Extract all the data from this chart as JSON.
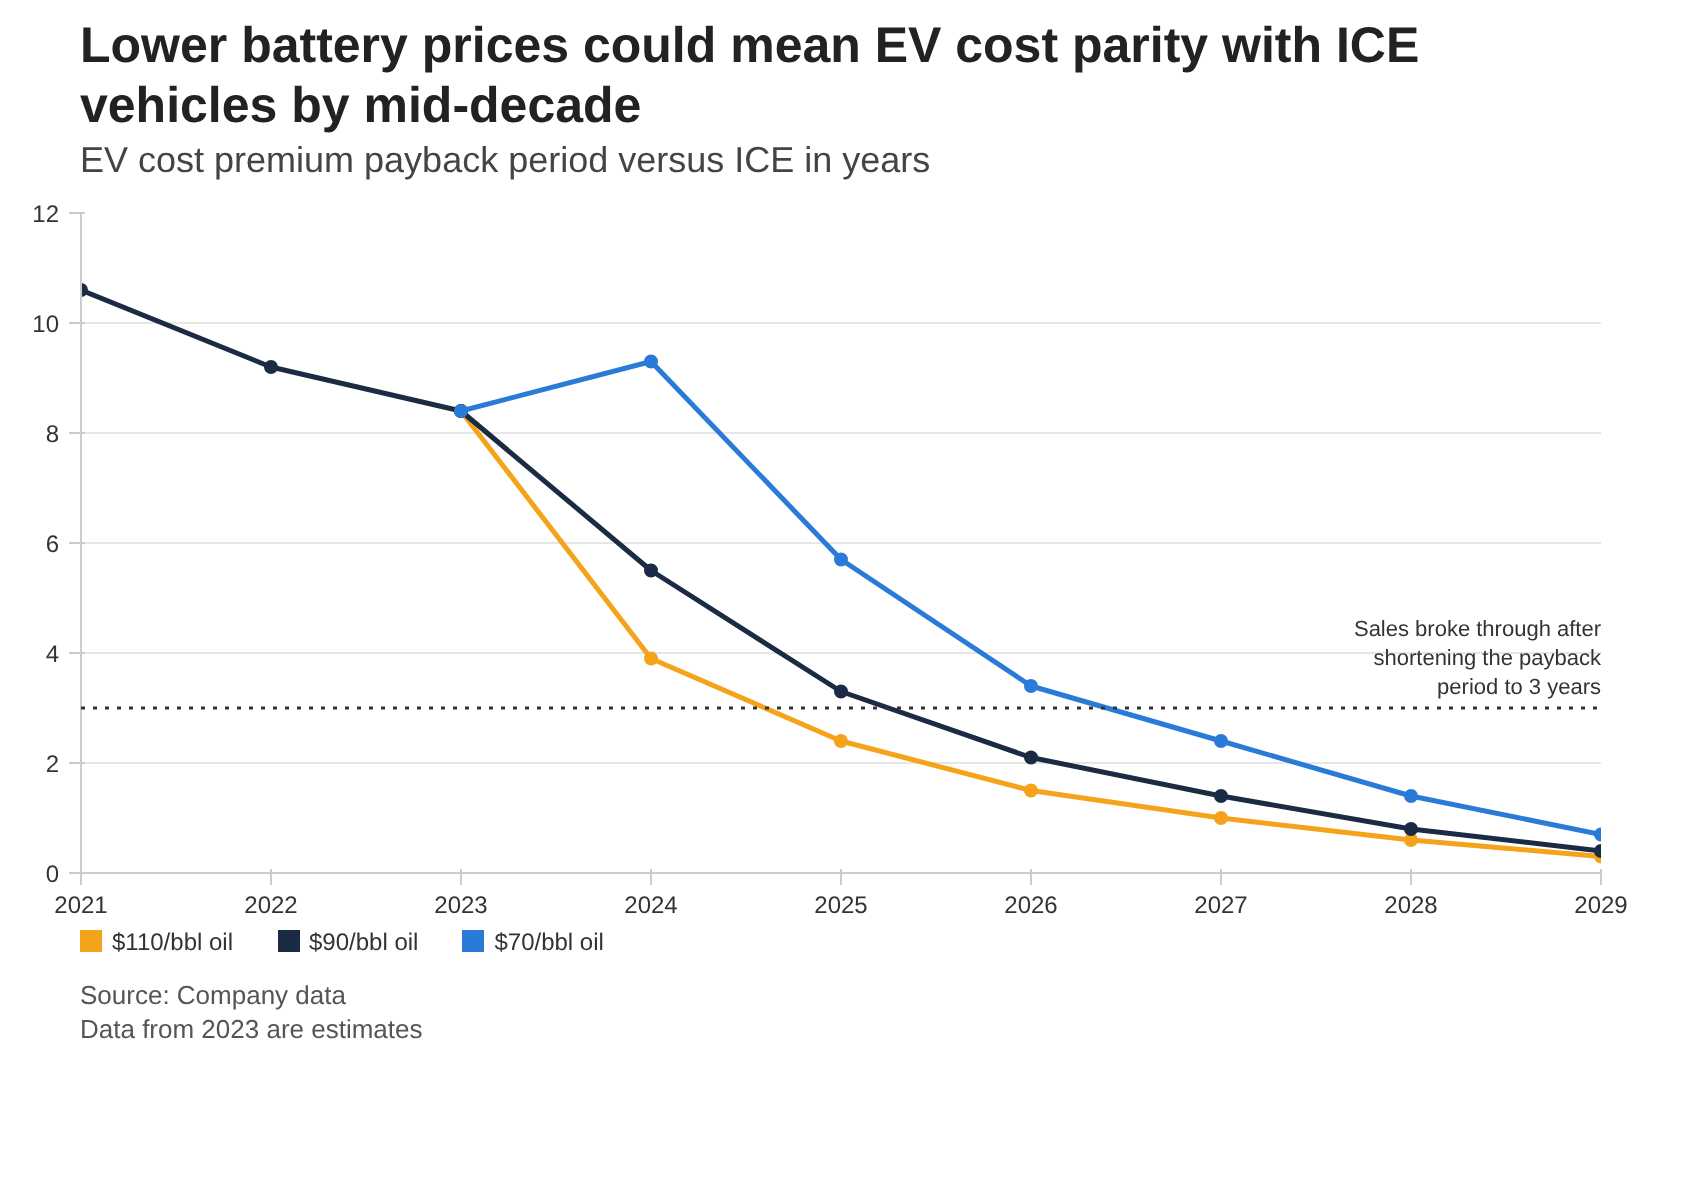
{
  "chart_data": {
    "type": "line",
    "title": "Lower battery prices could mean EV cost parity with ICE vehicles by mid-decade",
    "subtitle": "EV cost premium payback period versus ICE in years",
    "x": [
      2021,
      2022,
      2023,
      2024,
      2025,
      2026,
      2027,
      2028,
      2029
    ],
    "series": [
      {
        "name": "$110/bbl oil",
        "color": "#f5a31a",
        "values": [
          null,
          null,
          8.4,
          3.9,
          2.4,
          1.5,
          1.0,
          0.6,
          0.3
        ]
      },
      {
        "name": "$90/bbl oil",
        "color": "#1c2b44",
        "values": [
          10.6,
          9.2,
          8.4,
          5.5,
          3.3,
          2.1,
          1.4,
          0.8,
          0.4
        ]
      },
      {
        "name": "$70/bbl oil",
        "color": "#2a7ad8",
        "values": [
          null,
          null,
          8.4,
          9.3,
          5.7,
          3.4,
          2.4,
          1.4,
          0.7
        ]
      }
    ],
    "xlim": [
      2021,
      2029
    ],
    "xticks": [
      2021,
      2022,
      2023,
      2024,
      2025,
      2026,
      2027,
      2028,
      2029
    ],
    "ylim": [
      0,
      12
    ],
    "yticks": [
      0,
      2,
      4,
      6,
      8,
      10,
      12
    ],
    "ref_lines": [
      {
        "axis": "y",
        "value": 3,
        "label": "Sales broke through after shortening the payback period to 3 years",
        "color": "#333333",
        "line_style": "dotted"
      }
    ],
    "annotations": [
      "Source: Company data",
      "Data from 2023 are estimates"
    ],
    "grid": "y",
    "legend": "bottom",
    "marker": "circle",
    "line_style": "solid"
  }
}
